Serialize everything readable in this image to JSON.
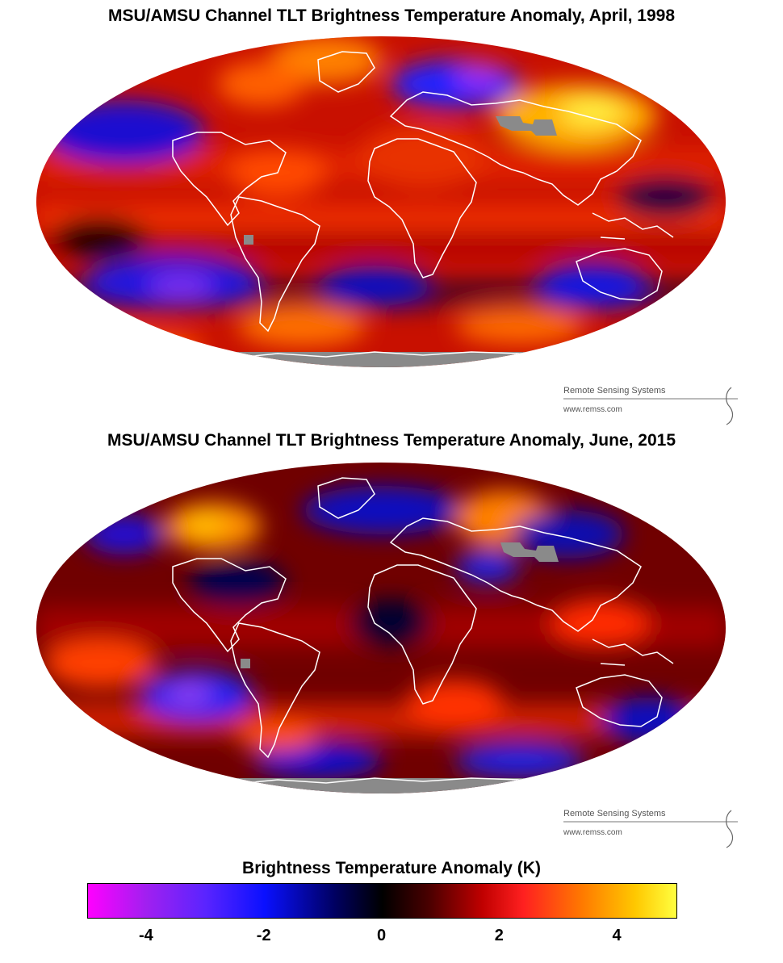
{
  "maps": [
    {
      "title": "MSU/AMSU Channel TLT Brightness Temperature Anomaly, April, 1998",
      "credit": {
        "org": "Remote Sensing Systems",
        "url": "www.remss.com"
      }
    },
    {
      "title": "MSU/AMSU Channel TLT Brightness Temperature Anomaly, June, 2015",
      "credit": {
        "org": "Remote Sensing Systems",
        "url": "www.remss.com"
      }
    }
  ],
  "colorbar": {
    "title": "Brightness Temperature Anomaly (K)",
    "range": [
      -5,
      5
    ],
    "ticks": [
      "-4",
      "-2",
      "0",
      "2",
      "4"
    ],
    "colors": {
      "-5": "#ff00ff",
      "-2.5": "#1010ff",
      "0": "#000000",
      "2.5": "#ff4000",
      "5": "#ffff40"
    },
    "no_data_color": "#8a8a8a",
    "coastline_color": "#ffffff"
  }
}
